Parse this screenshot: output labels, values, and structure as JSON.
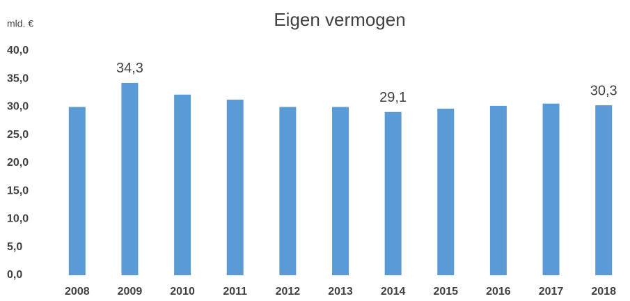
{
  "chart_data": {
    "type": "bar",
    "title": "Eigen vermogen",
    "y_label": "mld. €",
    "categories": [
      "2008",
      "2009",
      "2010",
      "2011",
      "2012",
      "2013",
      "2014",
      "2015",
      "2016",
      "2017",
      "2018"
    ],
    "values": [
      30.0,
      34.3,
      32.2,
      31.3,
      30.0,
      30.0,
      29.1,
      29.7,
      30.2,
      30.6,
      30.3
    ],
    "value_labels": [
      null,
      "34,3",
      null,
      null,
      null,
      null,
      "29,1",
      null,
      null,
      null,
      "30,3"
    ],
    "color": "#5b9bd5",
    "ylim": [
      0,
      40
    ],
    "yticks": [
      {
        "value": 0,
        "label": "0,0"
      },
      {
        "value": 5,
        "label": "5,0"
      },
      {
        "value": 10,
        "label": "10,0"
      },
      {
        "value": 15,
        "label": "15,0"
      },
      {
        "value": 20,
        "label": "20,0"
      },
      {
        "value": 25,
        "label": "25,0"
      },
      {
        "value": 30,
        "label": "30,0"
      },
      {
        "value": 35,
        "label": "35,0"
      },
      {
        "value": 40,
        "label": "40,0"
      }
    ],
    "grid": false
  }
}
